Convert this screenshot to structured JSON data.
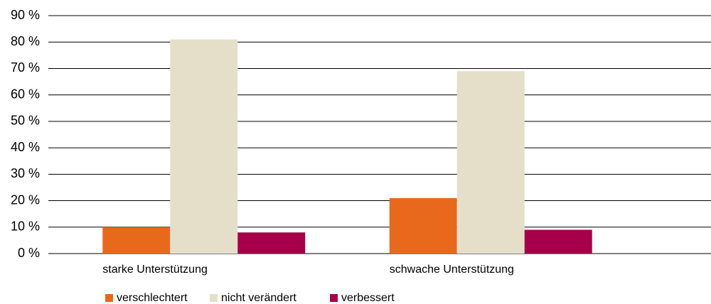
{
  "chart_data": {
    "type": "bar",
    "categories": [
      "starke Unterstützung",
      "schwache Unterstützung"
    ],
    "series": [
      {
        "name": "verschlechtert",
        "color": "#e8691c",
        "values": [
          10,
          21
        ]
      },
      {
        "name": "nicht verändert",
        "color": "#e5dfca",
        "values": [
          81,
          69
        ]
      },
      {
        "name": "verbessert",
        "color": "#a6004a",
        "values": [
          8,
          9
        ]
      }
    ],
    "ylim": [
      0,
      90
    ],
    "yticks": [
      {
        "value": 0,
        "label": "0 %"
      },
      {
        "value": 10,
        "label": "10 %"
      },
      {
        "value": 20,
        "label": "20 %"
      },
      {
        "value": 30,
        "label": "30 %"
      },
      {
        "value": 40,
        "label": "40 %"
      },
      {
        "value": 50,
        "label": "50 %"
      },
      {
        "value": 60,
        "label": "60 %"
      },
      {
        "value": 70,
        "label": "70 %"
      },
      {
        "value": 80,
        "label": "80 %"
      },
      {
        "value": 90,
        "label": "90 %"
      }
    ],
    "grid": true
  }
}
